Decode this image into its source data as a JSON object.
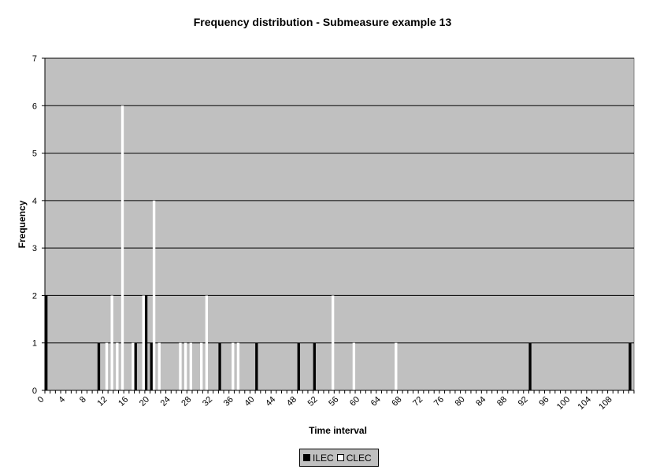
{
  "chart_data": {
    "type": "bar",
    "title": "Frequency distribution - Submeasure example 13",
    "xlabel": "Time interval",
    "ylabel": "Frequency",
    "ylim": [
      0,
      7
    ],
    "xlim": [
      0,
      112
    ],
    "y_ticks": [
      "0",
      "1",
      "2",
      "3",
      "4",
      "5",
      "6",
      "7"
    ],
    "x_ticks": [
      "0",
      "4",
      "8",
      "12",
      "16",
      "20",
      "24",
      "28",
      "32",
      "36",
      "40",
      "44",
      "48",
      "52",
      "56",
      "60",
      "64",
      "68",
      "72",
      "76",
      "80",
      "84",
      "88",
      "92",
      "96",
      "100",
      "104",
      "108"
    ],
    "grid": true,
    "legend_placement": "bottom",
    "series": [
      {
        "name": "ILEC",
        "color": "#000000",
        "points": [
          {
            "x": 0,
            "y": 2
          },
          {
            "x": 10,
            "y": 1
          },
          {
            "x": 17,
            "y": 1
          },
          {
            "x": 19,
            "y": 2
          },
          {
            "x": 20,
            "y": 1
          },
          {
            "x": 33,
            "y": 1
          },
          {
            "x": 40,
            "y": 1
          },
          {
            "x": 48,
            "y": 1
          },
          {
            "x": 51,
            "y": 1
          },
          {
            "x": 92,
            "y": 1
          },
          {
            "x": 111,
            "y": 1
          }
        ]
      },
      {
        "name": "CLEC",
        "color": "#ffffff",
        "points": [
          {
            "x": 11,
            "y": 1
          },
          {
            "x": 12,
            "y": 2
          },
          {
            "x": 13,
            "y": 1
          },
          {
            "x": 14,
            "y": 6
          },
          {
            "x": 16,
            "y": 1
          },
          {
            "x": 18,
            "y": 2
          },
          {
            "x": 20,
            "y": 4
          },
          {
            "x": 21,
            "y": 1
          },
          {
            "x": 25,
            "y": 1
          },
          {
            "x": 26,
            "y": 1
          },
          {
            "x": 27,
            "y": 1
          },
          {
            "x": 29,
            "y": 1
          },
          {
            "x": 30,
            "y": 2
          },
          {
            "x": 35,
            "y": 1
          },
          {
            "x": 36,
            "y": 1
          },
          {
            "x": 54,
            "y": 2
          },
          {
            "x": 58,
            "y": 1
          },
          {
            "x": 66,
            "y": 1
          }
        ]
      }
    ],
    "colors": {
      "plot_background": "#c0c0c0",
      "gridline": "#000000"
    }
  },
  "legend": {
    "items": [
      {
        "label": "ILEC",
        "color": "#000000"
      },
      {
        "label": "CLEC",
        "color": "#ffffff"
      }
    ]
  }
}
